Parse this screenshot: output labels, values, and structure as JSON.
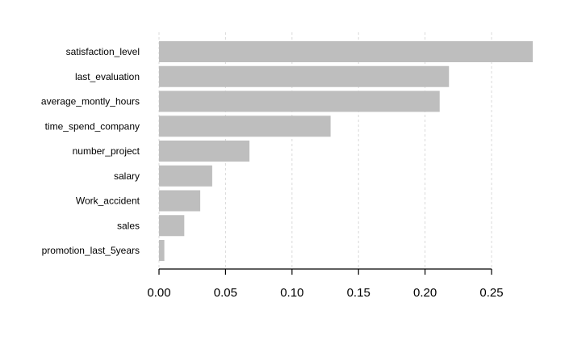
{
  "chart_data": {
    "type": "bar",
    "orientation": "horizontal",
    "title": "",
    "xlabel": "",
    "ylabel": "",
    "categories": [
      "satisfaction_level",
      "last_evaluation",
      "average_montly_hours",
      "time_spend_company",
      "number_project",
      "salary",
      "Work_accident",
      "sales",
      "promotion_last_5years"
    ],
    "values": [
      0.281,
      0.218,
      0.211,
      0.129,
      0.068,
      0.04,
      0.031,
      0.019,
      0.004
    ],
    "xlim": [
      0,
      0.28
    ],
    "xticks": [
      0.0,
      0.05,
      0.1,
      0.15,
      0.2,
      0.25
    ],
    "xtick_labels": [
      "0.00",
      "0.05",
      "0.10",
      "0.15",
      "0.20",
      "0.25"
    ],
    "grid": "vertical dashed",
    "legend": "none",
    "bar_color": "#bebebe"
  }
}
